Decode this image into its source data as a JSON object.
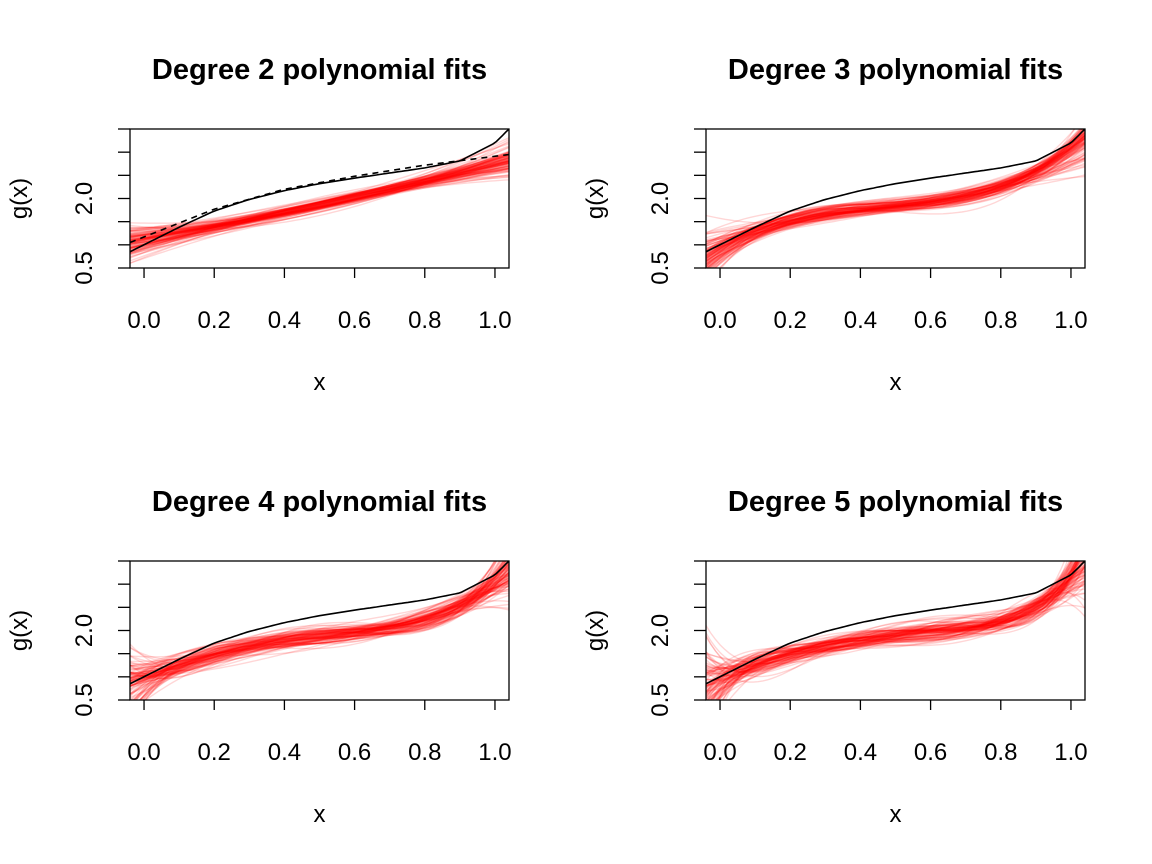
{
  "chart_data": [
    {
      "type": "line",
      "title": "Degree 2 polynomial fits",
      "xlabel": "x",
      "ylabel": "g(x)",
      "xlim": [
        -0.04,
        1.04
      ],
      "ylim": [
        0.5,
        3.5
      ],
      "xticks": [
        "0.0",
        "0.2",
        "0.4",
        "0.6",
        "0.8",
        "1.0"
      ],
      "yticks": [
        "0.5",
        "2.0"
      ],
      "series": [
        {
          "style": "fitted curves (red, many)",
          "color": "#ff0000"
        },
        {
          "style": "true function (solid black)",
          "color": "#000000",
          "x": [
            -0.04,
            0.1,
            0.2,
            0.3,
            0.4,
            0.5,
            0.6,
            0.7,
            0.8,
            0.9,
            1.0,
            1.04
          ],
          "y": [
            0.85,
            1.38,
            1.73,
            1.98,
            2.17,
            2.32,
            2.44,
            2.55,
            2.66,
            2.81,
            3.2,
            3.5
          ]
        },
        {
          "style": "average fit (dashed black)",
          "color": "#000000",
          "x": [
            -0.04,
            0.2,
            0.4,
            0.6,
            0.8,
            1.04
          ],
          "y": [
            1.05,
            1.77,
            2.2,
            2.48,
            2.72,
            2.95
          ]
        }
      ]
    },
    {
      "type": "line",
      "title": "Degree 3 polynomial fits",
      "xlabel": "x",
      "ylabel": "g(x)",
      "xlim": [
        -0.04,
        1.04
      ],
      "ylim": [
        0.5,
        3.5
      ],
      "xticks": [
        "0.0",
        "0.2",
        "0.4",
        "0.6",
        "0.8",
        "1.0"
      ],
      "yticks": [
        "0.5",
        "2.0"
      ],
      "series": [
        {
          "style": "fitted curves (red, many)",
          "color": "#ff0000"
        },
        {
          "style": "true function (solid black)",
          "color": "#000000",
          "x": [
            -0.04,
            0.1,
            0.2,
            0.3,
            0.4,
            0.5,
            0.6,
            0.7,
            0.8,
            0.9,
            1.0,
            1.04
          ],
          "y": [
            0.85,
            1.38,
            1.73,
            1.98,
            2.17,
            2.32,
            2.44,
            2.55,
            2.66,
            2.81,
            3.2,
            3.5
          ]
        }
      ]
    },
    {
      "type": "line",
      "title": "Degree 4 polynomial fits",
      "xlabel": "x",
      "ylabel": "g(x)",
      "xlim": [
        -0.04,
        1.04
      ],
      "ylim": [
        0.5,
        3.5
      ],
      "xticks": [
        "0.0",
        "0.2",
        "0.4",
        "0.6",
        "0.8",
        "1.0"
      ],
      "yticks": [
        "0.5",
        "2.0"
      ],
      "series": [
        {
          "style": "fitted curves (red, many)",
          "color": "#ff0000"
        },
        {
          "style": "true function (solid black)",
          "color": "#000000",
          "x": [
            -0.04,
            0.1,
            0.2,
            0.3,
            0.4,
            0.5,
            0.6,
            0.7,
            0.8,
            0.9,
            1.0,
            1.04
          ],
          "y": [
            0.85,
            1.38,
            1.73,
            1.98,
            2.17,
            2.32,
            2.44,
            2.55,
            2.66,
            2.81,
            3.2,
            3.5
          ]
        }
      ]
    },
    {
      "type": "line",
      "title": "Degree 5 polynomial fits",
      "xlabel": "x",
      "ylabel": "g(x)",
      "xlim": [
        -0.04,
        1.04
      ],
      "ylim": [
        0.5,
        3.5
      ],
      "xticks": [
        "0.0",
        "0.2",
        "0.4",
        "0.6",
        "0.8",
        "1.0"
      ],
      "yticks": [
        "0.5",
        "2.0"
      ],
      "series": [
        {
          "style": "fitted curves (red, many)",
          "color": "#ff0000"
        },
        {
          "style": "true function (solid black)",
          "color": "#000000",
          "x": [
            -0.04,
            0.1,
            0.2,
            0.3,
            0.4,
            0.5,
            0.6,
            0.7,
            0.8,
            0.9,
            1.0,
            1.04
          ],
          "y": [
            0.85,
            1.38,
            1.73,
            1.98,
            2.17,
            2.32,
            2.44,
            2.55,
            2.66,
            2.81,
            3.2,
            3.5
          ]
        }
      ]
    }
  ]
}
